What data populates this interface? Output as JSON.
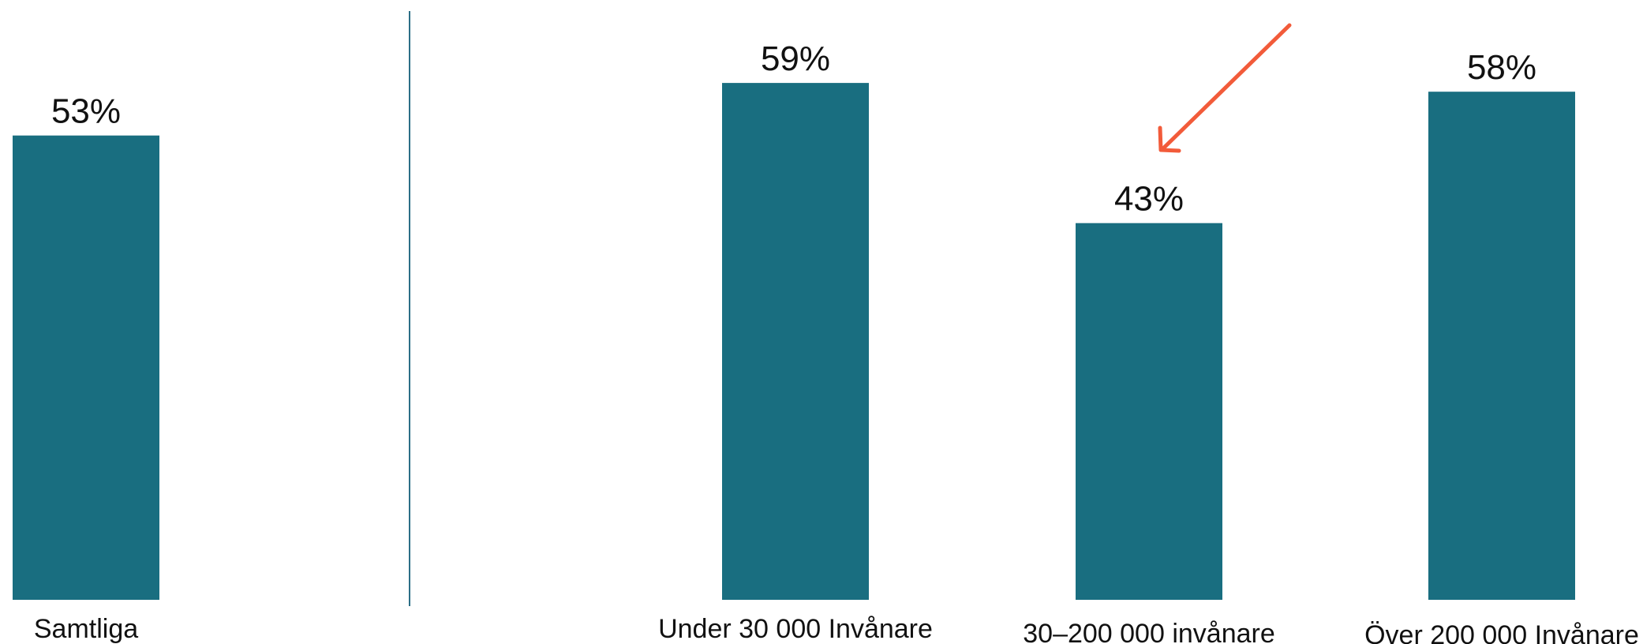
{
  "chart_data": {
    "type": "bar",
    "categories": [
      "Samtliga",
      "Under 30 000 Invånare",
      "30–200 000 invånare",
      "Över 200 000 Invånare"
    ],
    "values": [
      53,
      59,
      43,
      58
    ],
    "value_labels": [
      "53%",
      "59%",
      "43%",
      "58%"
    ],
    "unit": "%",
    "ylim": [
      0,
      65
    ],
    "grid": false,
    "legend": "none",
    "separator_after_category": 0,
    "highlight_arrow_target": "30–200 000 invånare"
  },
  "colors": {
    "bar": "#196E80",
    "separator": "#2C6F86",
    "arrow": "#F25B3A"
  }
}
